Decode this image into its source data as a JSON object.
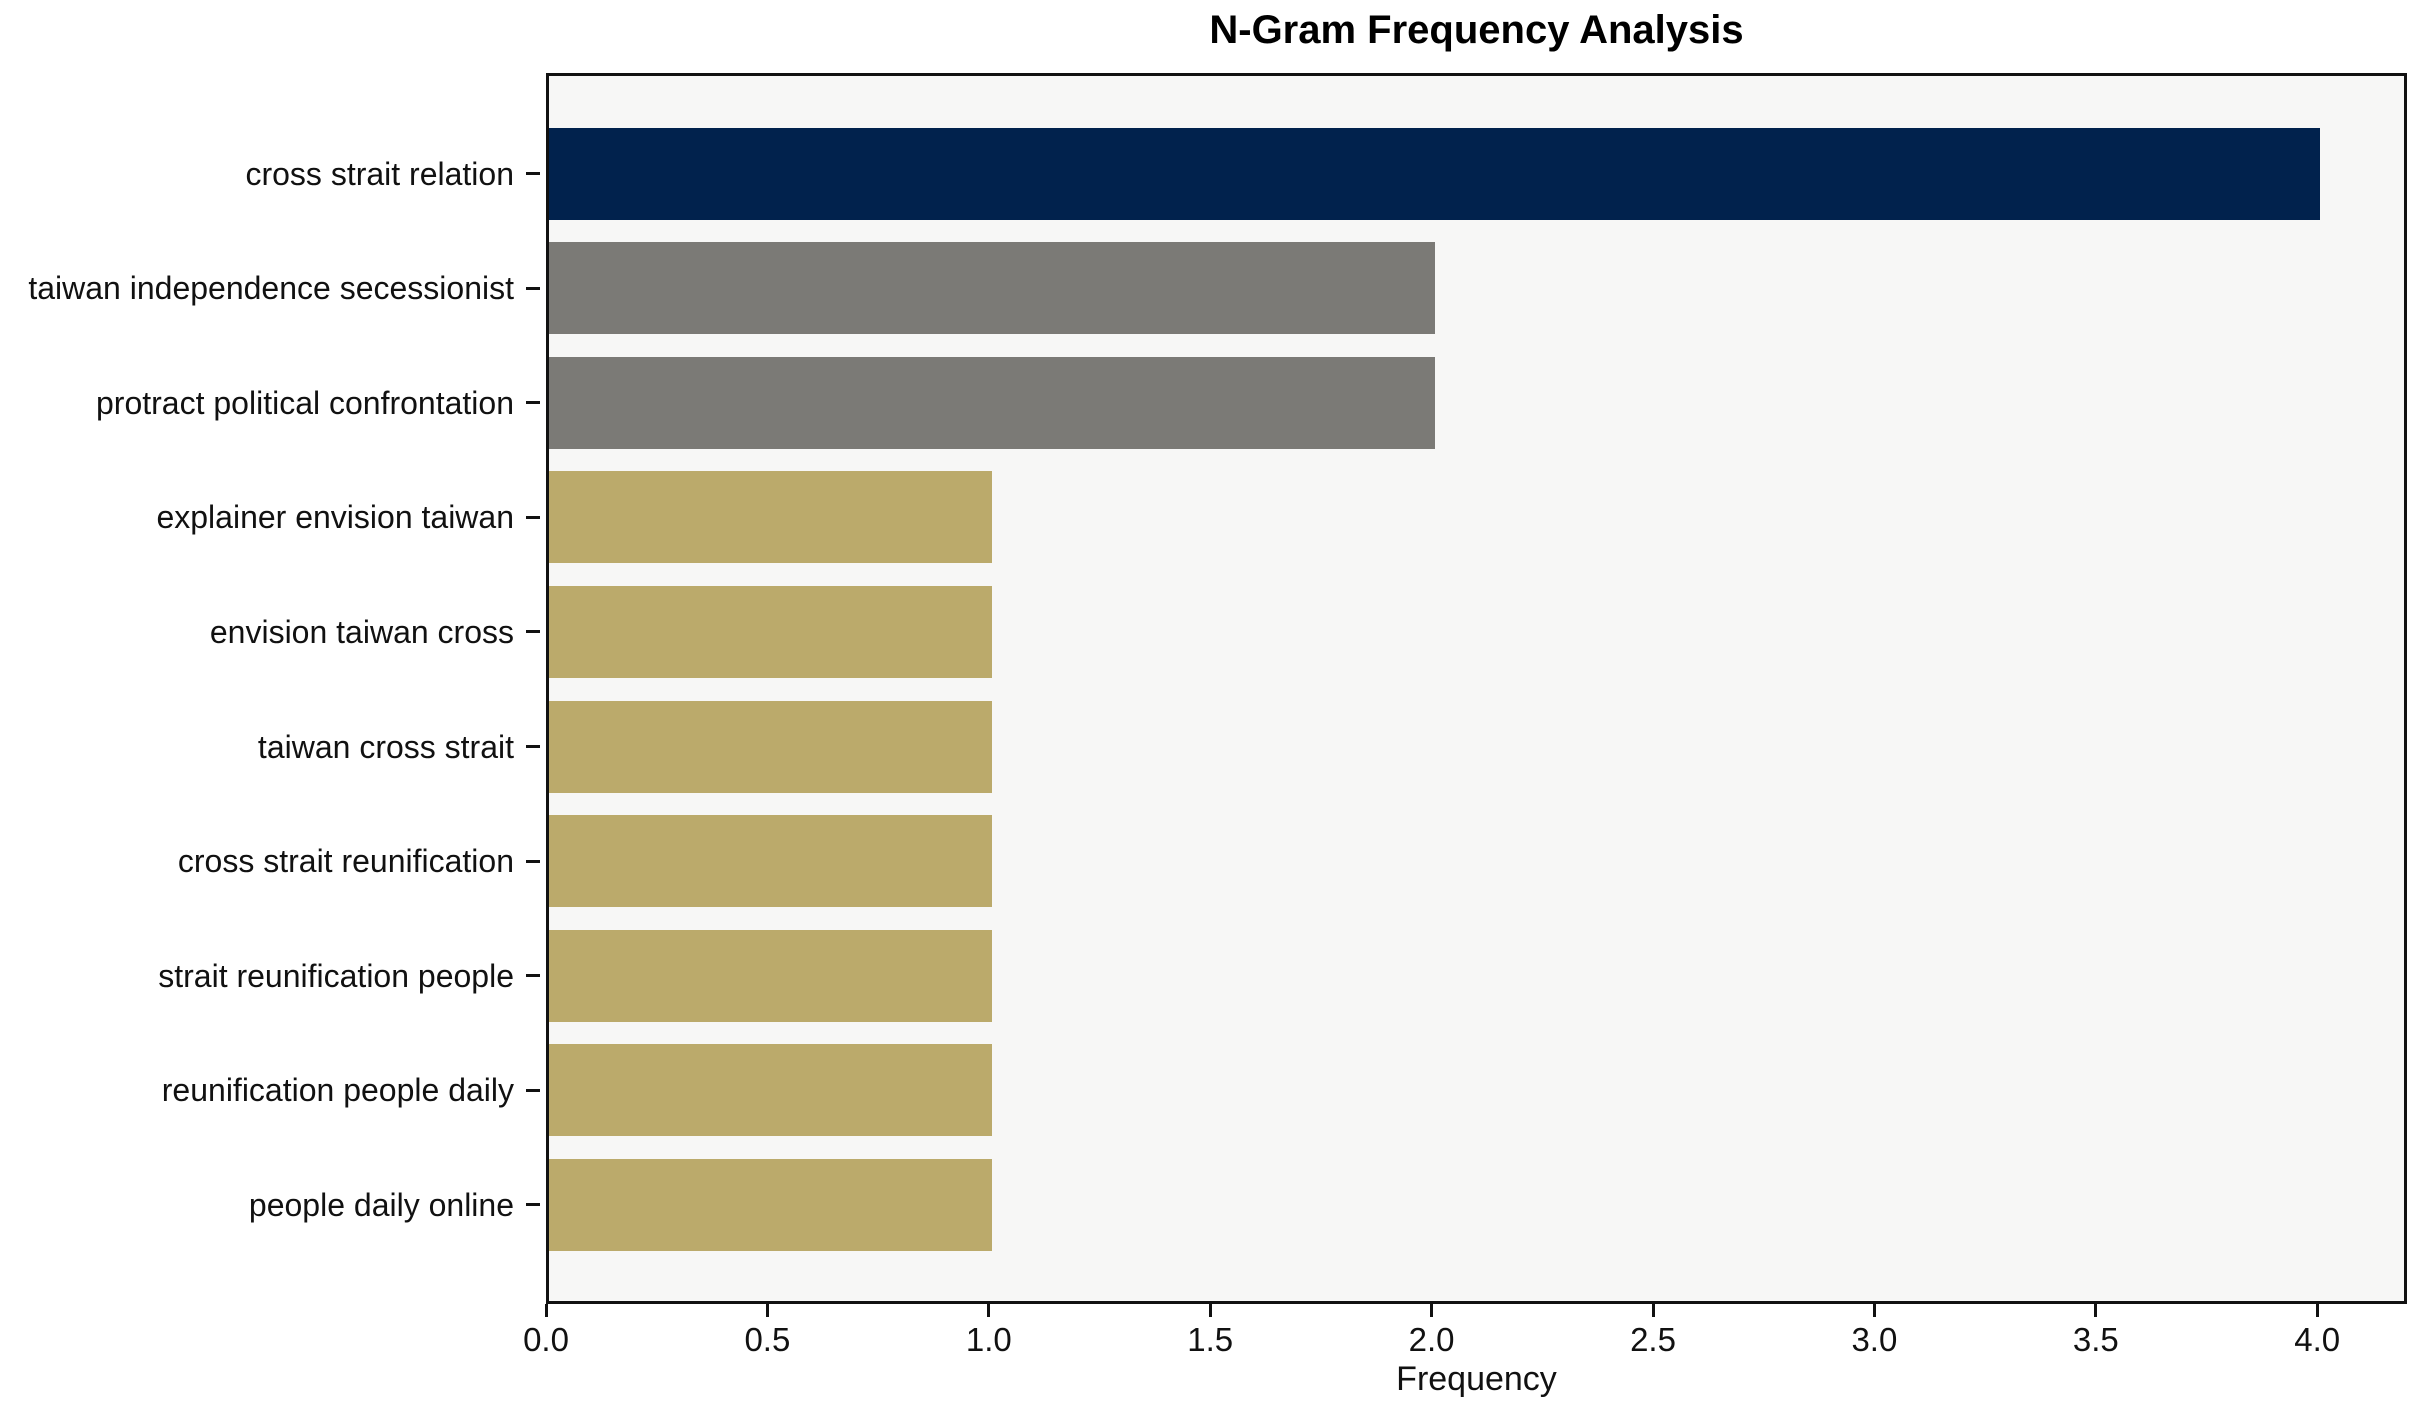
{
  "title": "N-Gram Frequency Analysis",
  "chart_data": {
    "type": "bar",
    "orientation": "horizontal",
    "title": "N-Gram Frequency Analysis",
    "xlabel": "Frequency",
    "ylabel": "",
    "categories": [
      "cross strait relation",
      "taiwan independence secessionist",
      "protract political confrontation",
      "explainer envision taiwan",
      "envision taiwan cross",
      "taiwan cross strait",
      "cross strait reunification",
      "strait reunification people",
      "reunification people daily",
      "people daily online"
    ],
    "values": [
      4,
      2,
      2,
      1,
      1,
      1,
      1,
      1,
      1,
      1
    ],
    "bar_colors": [
      "#01224d",
      "#7b7a76",
      "#7b7a76",
      "#bbaa6b",
      "#bbaa6b",
      "#bbaa6b",
      "#bbaa6b",
      "#bbaa6b",
      "#bbaa6b",
      "#bbaa6b"
    ],
    "xlim": [
      0,
      4.2
    ],
    "xticks": [
      0.0,
      0.5,
      1.0,
      1.5,
      2.0,
      2.5,
      3.0,
      3.5,
      4.0
    ],
    "xtick_labels": [
      "0.0",
      "0.5",
      "1.0",
      "1.5",
      "2.0",
      "2.5",
      "3.0",
      "3.5",
      "4.0"
    ],
    "grid": false,
    "legend": null,
    "colors": {
      "plot_background": "#f7f7f6",
      "figure_background": "#ffffff",
      "axis": "#111111",
      "text": "#111111"
    }
  }
}
